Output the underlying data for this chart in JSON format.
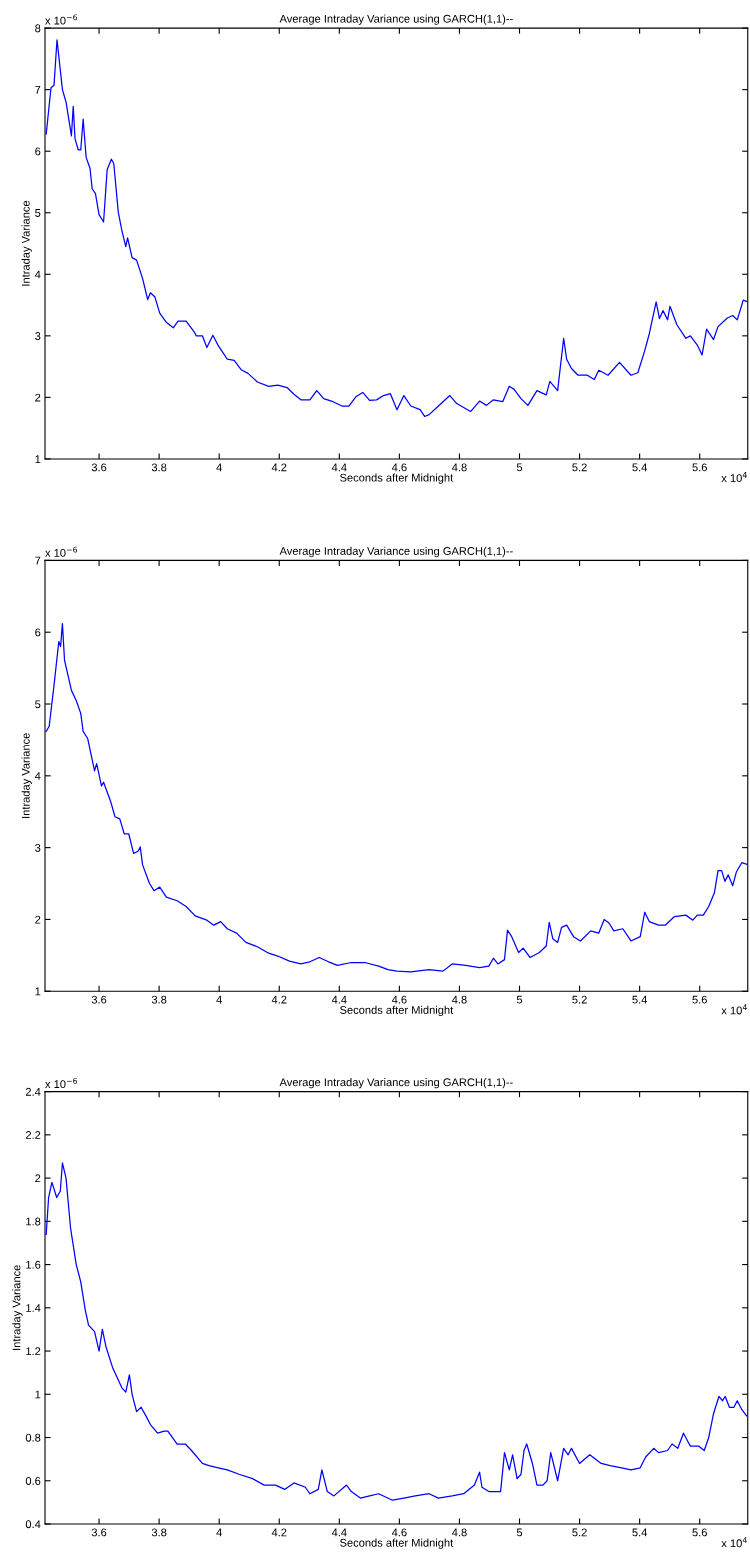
{
  "chart_data": [
    {
      "type": "line",
      "title": "Average Intraday Variance using GARCH(1,1)--",
      "xlabel": "Seconds after Midnight",
      "ylabel": "Intraday Variance",
      "xlim": [
        3.42,
        5.76
      ],
      "xticks": [
        3.6,
        3.8,
        4,
        4.2,
        4.4,
        4.6,
        4.8,
        5,
        5.2,
        5.4,
        5.6
      ],
      "ylim": [
        1,
        8
      ],
      "yticks": [
        1,
        2,
        3,
        4,
        5,
        6,
        7,
        8
      ],
      "grid": false,
      "annotations": [
        "x 10$^{−6}$",
        "x 10$^{4}$"
      ],
      "series": [
        {
          "color": "#0000ff",
          "x": [
            3.424,
            3.44,
            3.45,
            3.46,
            3.478,
            3.49,
            3.508,
            3.514,
            3.52,
            3.531,
            3.539,
            3.547,
            3.557,
            3.57,
            3.577,
            3.588,
            3.6,
            3.615,
            3.627,
            3.641,
            3.649,
            3.664,
            3.676,
            3.689,
            3.695,
            3.71,
            3.725,
            3.745,
            3.762,
            3.771,
            3.786,
            3.802,
            3.824,
            3.847,
            3.863,
            3.89,
            3.916,
            3.924,
            3.944,
            3.959,
            3.979,
            3.997,
            4.012,
            4.027,
            4.05,
            4.073,
            4.096,
            4.127,
            4.165,
            4.195,
            4.226,
            4.249,
            4.272,
            4.302,
            4.325,
            4.348,
            4.379,
            4.409,
            4.432,
            4.455,
            4.478,
            4.501,
            4.524,
            4.547,
            4.57,
            4.592,
            4.615,
            4.638,
            4.669,
            4.684,
            4.699,
            4.73,
            4.768,
            4.791,
            4.837,
            4.867,
            4.89,
            4.913,
            4.944,
            4.966,
            4.982,
            5.005,
            5.028,
            5.058,
            5.089,
            5.101,
            5.127,
            5.147,
            5.157,
            5.173,
            5.195,
            5.226,
            5.249,
            5.264,
            5.295,
            5.333,
            5.371,
            5.394,
            5.417,
            5.432,
            5.455,
            5.466,
            5.478,
            5.493,
            5.501,
            5.524,
            5.554,
            5.569,
            5.592,
            5.608,
            5.623,
            5.646,
            5.661,
            5.692,
            5.71,
            5.725,
            5.745,
            5.756
          ],
          "values": [
            6.28,
            7.03,
            7.07,
            7.81,
            7.0,
            6.8,
            6.25,
            6.73,
            6.2,
            6.02,
            6.02,
            6.52,
            5.9,
            5.72,
            5.39,
            5.31,
            4.97,
            4.85,
            5.7,
            5.87,
            5.8,
            5.01,
            4.71,
            4.45,
            4.59,
            4.27,
            4.23,
            3.93,
            3.59,
            3.7,
            3.63,
            3.37,
            3.22,
            3.13,
            3.24,
            3.24,
            3.07,
            3.0,
            3.0,
            2.81,
            3.01,
            2.84,
            2.73,
            2.62,
            2.6,
            2.45,
            2.39,
            2.25,
            2.18,
            2.2,
            2.16,
            2.05,
            1.96,
            1.96,
            2.11,
            1.98,
            1.93,
            1.86,
            1.86,
            2.01,
            2.08,
            1.95,
            1.96,
            2.03,
            2.06,
            1.8,
            2.03,
            1.86,
            1.8,
            1.69,
            1.72,
            1.86,
            2.03,
            1.9,
            1.77,
            1.94,
            1.87,
            1.96,
            1.93,
            2.18,
            2.13,
            1.98,
            1.87,
            2.11,
            2.04,
            2.26,
            2.11,
            2.96,
            2.62,
            2.47,
            2.36,
            2.36,
            2.29,
            2.44,
            2.36,
            2.57,
            2.36,
            2.4,
            2.76,
            3.03,
            3.55,
            3.28,
            3.41,
            3.26,
            3.48,
            3.18,
            2.96,
            3.0,
            2.85,
            2.69,
            3.11,
            2.94,
            3.15,
            3.29,
            3.33,
            3.26,
            3.58,
            3.56
          ]
        }
      ]
    },
    {
      "type": "line",
      "title": "Average Intraday Variance using GARCH(1,1)--",
      "xlabel": "Seconds after Midnight",
      "ylabel": "Intraday Variance",
      "xlim": [
        3.42,
        5.76
      ],
      "xticks": [
        3.6,
        3.8,
        4,
        4.2,
        4.4,
        4.6,
        4.8,
        5,
        5.2,
        5.4,
        5.6
      ],
      "ylim": [
        1,
        7
      ],
      "yticks": [
        1,
        2,
        3,
        4,
        5,
        6,
        7
      ],
      "grid": false,
      "annotations": [
        "x 10$^{−6}$",
        "x 10$^{4}$"
      ],
      "series": [
        {
          "color": "#0000ff",
          "x": [
            3.424,
            3.434,
            3.45,
            3.466,
            3.472,
            3.478,
            3.485,
            3.508,
            3.524,
            3.539,
            3.547,
            3.562,
            3.585,
            3.592,
            3.608,
            3.615,
            3.638,
            3.653,
            3.669,
            3.684,
            3.699,
            3.715,
            3.73,
            3.737,
            3.745,
            3.768,
            3.783,
            3.802,
            3.824,
            3.86,
            3.89,
            3.92,
            3.959,
            3.982,
            4.005,
            4.027,
            4.058,
            4.089,
            4.127,
            4.165,
            4.195,
            4.234,
            4.272,
            4.302,
            4.333,
            4.364,
            4.394,
            4.44,
            4.485,
            4.531,
            4.562,
            4.592,
            4.638,
            4.699,
            4.745,
            4.776,
            4.821,
            4.867,
            4.898,
            4.913,
            4.928,
            4.95,
            4.96,
            4.974,
            4.997,
            5.012,
            5.035,
            5.066,
            5.089,
            5.099,
            5.111,
            5.127,
            5.14,
            5.157,
            5.18,
            5.203,
            5.237,
            5.264,
            5.282,
            5.298,
            5.314,
            5.344,
            5.371,
            5.402,
            5.417,
            5.432,
            5.463,
            5.485,
            5.516,
            5.554,
            5.577,
            5.592,
            5.612,
            5.63,
            5.649,
            5.661,
            5.673,
            5.684,
            5.695,
            5.71,
            5.722,
            5.74,
            5.756
          ],
          "values": [
            4.62,
            4.69,
            5.26,
            5.87,
            5.8,
            6.12,
            5.61,
            5.19,
            5.05,
            4.87,
            4.62,
            4.52,
            4.07,
            4.17,
            3.86,
            3.91,
            3.65,
            3.43,
            3.4,
            3.19,
            3.19,
            2.92,
            2.95,
            3.01,
            2.76,
            2.5,
            2.4,
            2.45,
            2.31,
            2.26,
            2.18,
            2.05,
            1.99,
            1.92,
            1.97,
            1.87,
            1.81,
            1.68,
            1.62,
            1.53,
            1.49,
            1.42,
            1.38,
            1.41,
            1.47,
            1.41,
            1.36,
            1.4,
            1.4,
            1.35,
            1.3,
            1.28,
            1.27,
            1.3,
            1.28,
            1.38,
            1.36,
            1.33,
            1.35,
            1.46,
            1.38,
            1.44,
            1.85,
            1.76,
            1.54,
            1.6,
            1.47,
            1.54,
            1.63,
            1.96,
            1.73,
            1.68,
            1.89,
            1.92,
            1.76,
            1.7,
            1.84,
            1.81,
            2.0,
            1.95,
            1.84,
            1.87,
            1.7,
            1.76,
            2.1,
            1.97,
            1.92,
            1.92,
            2.04,
            2.06,
            1.99,
            2.06,
            2.06,
            2.18,
            2.37,
            2.68,
            2.68,
            2.53,
            2.62,
            2.47,
            2.66,
            2.79,
            2.77
          ]
        }
      ]
    },
    {
      "type": "line",
      "title": "Average Intraday Variance using GARCH(1,1)--",
      "xlabel": "Seconds after Midnight",
      "ylabel": "Intraday Variance",
      "xlim": [
        3.42,
        5.76
      ],
      "xticks": [
        3.6,
        3.8,
        4,
        4.2,
        4.4,
        4.6,
        4.8,
        5,
        5.2,
        5.4,
        5.6
      ],
      "ylim": [
        0.4,
        2.4
      ],
      "yticks": [
        0.4,
        0.6,
        0.8,
        1,
        1.2,
        1.4,
        1.6,
        1.8,
        2,
        2.2,
        2.4
      ],
      "grid": false,
      "annotations": [
        "x 10$^{−6}$",
        "x 10$^{4}$"
      ],
      "series": [
        {
          "color": "#0000ff",
          "x": [
            3.424,
            3.432,
            3.443,
            3.459,
            3.471,
            3.478,
            3.49,
            3.505,
            3.524,
            3.539,
            3.554,
            3.565,
            3.585,
            3.6,
            3.611,
            3.623,
            3.646,
            3.676,
            3.689,
            3.701,
            3.71,
            3.725,
            3.74,
            3.756,
            3.771,
            3.795,
            3.817,
            3.829,
            3.86,
            3.887,
            3.908,
            3.944,
            3.966,
            3.997,
            4.027,
            4.066,
            4.111,
            4.15,
            4.188,
            4.218,
            4.249,
            4.287,
            4.302,
            4.33,
            4.342,
            4.36,
            4.382,
            4.424,
            4.44,
            4.47,
            4.501,
            4.531,
            4.577,
            4.615,
            4.653,
            4.699,
            4.73,
            4.776,
            4.814,
            4.85,
            4.867,
            4.875,
            4.898,
            4.937,
            4.95,
            4.966,
            4.977,
            4.992,
            5.005,
            5.015,
            5.024,
            5.043,
            5.058,
            5.078,
            5.092,
            5.104,
            5.127,
            5.147,
            5.162,
            5.173,
            5.2,
            5.234,
            5.272,
            5.302,
            5.34,
            5.371,
            5.402,
            5.42,
            5.447,
            5.463,
            5.493,
            5.508,
            5.527,
            5.546,
            5.569,
            5.597,
            5.615,
            5.63,
            5.646,
            5.664,
            5.676,
            5.685,
            5.699,
            5.714,
            5.725,
            5.74,
            5.756
          ],
          "values": [
            1.74,
            1.91,
            1.98,
            1.91,
            1.94,
            2.07,
            2.0,
            1.77,
            1.6,
            1.52,
            1.39,
            1.32,
            1.29,
            1.2,
            1.3,
            1.22,
            1.12,
            1.03,
            1.01,
            1.09,
            1.0,
            0.92,
            0.94,
            0.9,
            0.86,
            0.82,
            0.83,
            0.83,
            0.77,
            0.77,
            0.74,
            0.68,
            0.67,
            0.66,
            0.65,
            0.63,
            0.61,
            0.58,
            0.58,
            0.56,
            0.59,
            0.57,
            0.54,
            0.56,
            0.65,
            0.55,
            0.53,
            0.58,
            0.55,
            0.52,
            0.53,
            0.54,
            0.51,
            0.52,
            0.53,
            0.54,
            0.52,
            0.53,
            0.54,
            0.58,
            0.64,
            0.57,
            0.55,
            0.55,
            0.73,
            0.65,
            0.72,
            0.61,
            0.63,
            0.74,
            0.77,
            0.68,
            0.58,
            0.58,
            0.6,
            0.73,
            0.6,
            0.75,
            0.72,
            0.75,
            0.68,
            0.72,
            0.68,
            0.67,
            0.66,
            0.65,
            0.66,
            0.71,
            0.75,
            0.73,
            0.74,
            0.77,
            0.75,
            0.82,
            0.76,
            0.76,
            0.74,
            0.8,
            0.91,
            0.99,
            0.97,
            0.99,
            0.94,
            0.94,
            0.97,
            0.93,
            0.9
          ]
        }
      ]
    }
  ]
}
